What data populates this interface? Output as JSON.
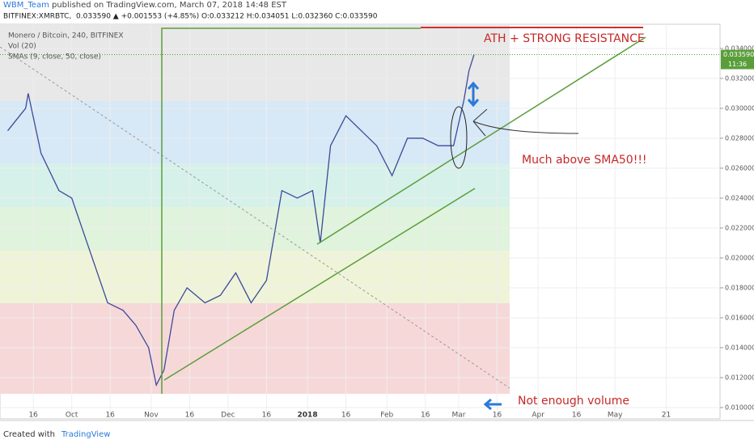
{
  "header": {
    "author": "WBM_Team",
    "published": "published on TradingView.com, March 07, 2018 14:48 EST",
    "symbol": "BITFINEX:XMRBTC,",
    "quote": "0.033590 ▲ +0.001553 (+4.85%) O:0.033212 H:0.034051 L:0.032360 C:0.033590"
  },
  "chart_data": {
    "type": "line",
    "title": "Monero / Bitcoin, 240, BITFINEX",
    "indicators": [
      "Vol (20)",
      "SMAs (9, close, 50, close)"
    ],
    "x": [
      5,
      12,
      13,
      18,
      25,
      30,
      36,
      40,
      44,
      50,
      55,
      60,
      63,
      66,
      70,
      75,
      82,
      88,
      94,
      100,
      106,
      112,
      118,
      124,
      127,
      131,
      137,
      143,
      149,
      155,
      161,
      167,
      173,
      179,
      183,
      185,
      187
    ],
    "values": [
      0.0285,
      0.03,
      0.031,
      0.027,
      0.0245,
      0.024,
      0.021,
      0.019,
      0.017,
      0.0165,
      0.0155,
      0.014,
      0.0115,
      0.0125,
      0.0165,
      0.018,
      0.017,
      0.0175,
      0.019,
      0.017,
      0.0185,
      0.0245,
      0.024,
      0.0245,
      0.021,
      0.0275,
      0.0295,
      0.0285,
      0.0275,
      0.0255,
      0.028,
      0.028,
      0.0275,
      0.0275,
      0.0305,
      0.0325,
      0.03359
    ],
    "color": "#3a4a9a",
    "xlim": [
      2,
      283
    ],
    "ylim": [
      0.00924,
      0.03562
    ],
    "xticks": [
      {
        "value": 15,
        "label": "16"
      },
      {
        "value": 30,
        "label": "Oct"
      },
      {
        "value": 45,
        "label": "16"
      },
      {
        "value": 61,
        "label": "Nov"
      },
      {
        "value": 76,
        "label": "16"
      },
      {
        "value": 91,
        "label": "Dec"
      },
      {
        "value": 106,
        "label": "16"
      },
      {
        "value": 122,
        "label": "2018"
      },
      {
        "value": 137,
        "label": "16"
      },
      {
        "value": 153,
        "label": "Feb"
      },
      {
        "value": 168,
        "label": "16"
      },
      {
        "value": 181,
        "label": "Mar"
      },
      {
        "value": 196,
        "label": "16"
      },
      {
        "value": 212,
        "label": "Apr"
      },
      {
        "value": 227,
        "label": "16"
      },
      {
        "value": 242,
        "label": "May"
      },
      {
        "value": 262,
        "label": "21"
      }
    ],
    "yticks": [
      {
        "value": 0.01,
        "label": "0.010000"
      },
      {
        "value": 0.012,
        "label": "0.012000"
      },
      {
        "value": 0.014,
        "label": "0.014000"
      },
      {
        "value": 0.016,
        "label": "0.016000"
      },
      {
        "value": 0.018,
        "label": "0.018000"
      },
      {
        "value": 0.02,
        "label": "0.020000"
      },
      {
        "value": 0.022,
        "label": "0.022000"
      },
      {
        "value": 0.024,
        "label": "0.024000"
      },
      {
        "value": 0.026,
        "label": "0.026000"
      },
      {
        "value": 0.028,
        "label": "0.028000"
      },
      {
        "value": 0.03,
        "label": "0.030000"
      },
      {
        "value": 0.032,
        "label": "0.032000"
      },
      {
        "value": 0.034,
        "label": "0.034000"
      }
    ],
    "grid": true,
    "last_price": {
      "value": 0.03359,
      "label": "0.033590"
    },
    "countdown": "11:36",
    "annotations": [
      "ATH + STRONG RESISTANCE",
      "Much above SMA50!!!",
      "Not enough volume"
    ]
  },
  "footer": {
    "created": "Created with",
    "brand": "TradingView"
  }
}
